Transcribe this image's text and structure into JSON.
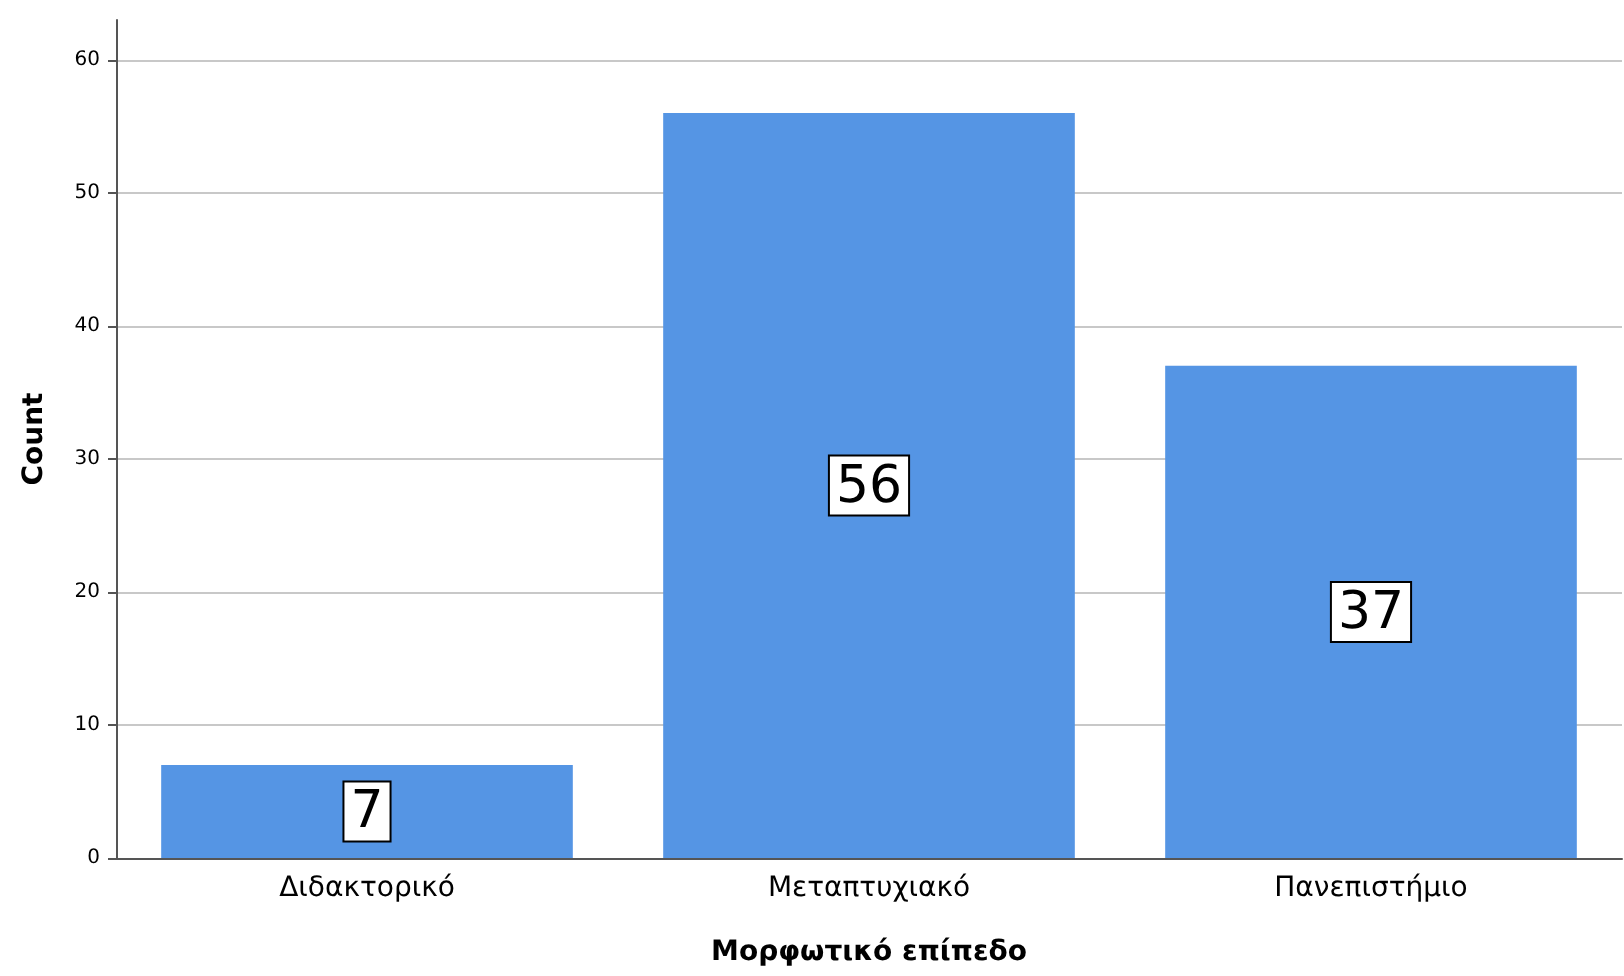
{
  "chart_data": {
    "type": "bar",
    "xlabel": "Μορφωτικό επίπεδο",
    "ylabel": "Count",
    "categories": [
      "Διδακτορικό",
      "Μεταπτυχιακό",
      "Πανεπιστήμιο"
    ],
    "values": [
      7,
      56,
      37
    ],
    "color": "#5595e4",
    "ylim": [
      0,
      63
    ],
    "yticks": [
      0,
      10,
      20,
      30,
      40,
      50,
      60
    ],
    "grid": "y",
    "data_labels": true
  }
}
